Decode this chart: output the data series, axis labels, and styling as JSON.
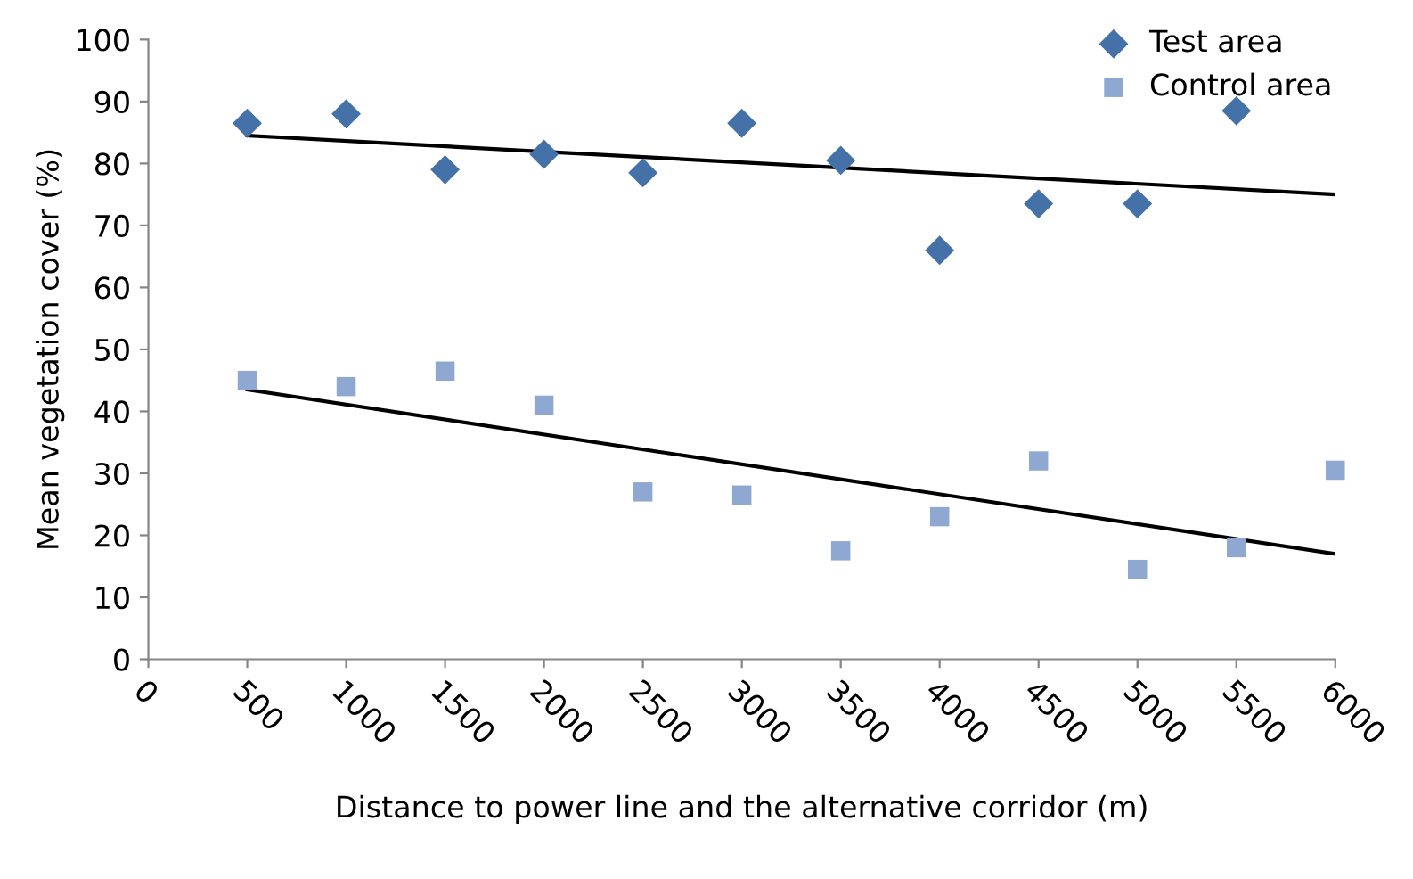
{
  "chart_data": {
    "type": "scatter",
    "xlabel": "Distance to power line and the alternative corridor (m)",
    "ylabel": "Mean vegetation cover (%)",
    "xlim": [
      0,
      6000
    ],
    "xticks": [
      0,
      500,
      1000,
      1500,
      2000,
      2500,
      3000,
      3500,
      4000,
      4500,
      5000,
      5500,
      6000
    ],
    "ylim": [
      0,
      100
    ],
    "yticks": [
      0,
      10,
      20,
      30,
      40,
      50,
      60,
      70,
      80,
      90,
      100
    ],
    "grid": false,
    "legend": "top right",
    "series": [
      {
        "name": "Test area",
        "color": "#4472a8",
        "marker": "diamond",
        "x": [
          500,
          1000,
          1500,
          2000,
          2500,
          3000,
          3500,
          4000,
          4500,
          5000,
          5500
        ],
        "values": [
          86.5,
          88,
          79,
          81.5,
          78.5,
          86.5,
          80.5,
          66,
          73.5,
          73.5,
          88.5
        ]
      },
      {
        "name": "Control area",
        "color": "#8fa8d2",
        "marker": "square",
        "x": [
          500,
          1000,
          1500,
          2000,
          2500,
          3000,
          3500,
          4000,
          4500,
          5000,
          5500,
          6000
        ],
        "values": [
          45,
          44,
          46.5,
          41,
          27,
          26.5,
          17.5,
          23,
          32,
          14.5,
          18,
          30.5
        ]
      },
      {
        "type": "line",
        "color": "#000000",
        "marker": "none",
        "x": [
          500,
          6000
        ],
        "values": [
          84.5,
          75
        ]
      },
      {
        "type": "line",
        "color": "#000000",
        "marker": "none",
        "x": [
          500,
          6000
        ],
        "values": [
          43.5,
          17
        ]
      }
    ]
  }
}
